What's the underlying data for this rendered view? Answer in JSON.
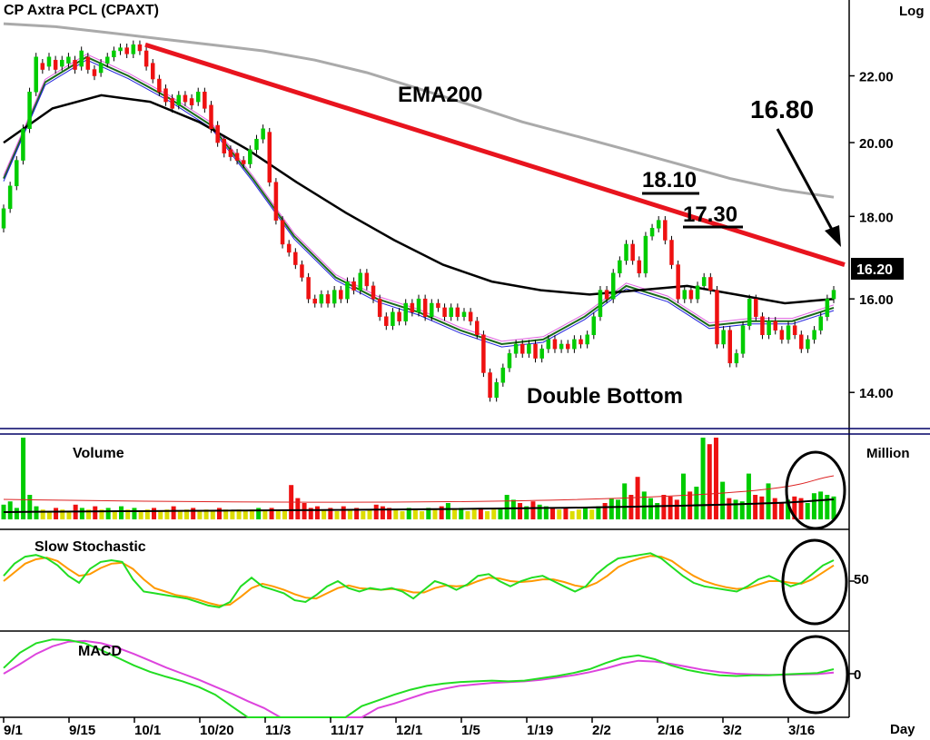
{
  "chart_data": {
    "type": "candlestick",
    "title": "CP  Axtra  PCL  (CPAXT)",
    "price_scale_label": "Log",
    "x_unit_label": "Day",
    "x_ticks": [
      "9/1",
      "9/15",
      "10/1",
      "10/20",
      "11/3",
      "11/17",
      "12/1",
      "1/5",
      "1/19",
      "2/2",
      "2/16",
      "3/2",
      "3/16"
    ],
    "price_ticks": [
      "22.00",
      "20.00",
      "18.00",
      "16.00",
      "14.00"
    ],
    "price_tick_values": [
      22,
      20,
      18,
      16,
      14
    ],
    "price_range": [
      13.4,
      24.2
    ],
    "last_price": "16.20",
    "price_bars": [
      {
        "o": 17.7,
        "c": 18.2
      },
      {
        "o": 18.2,
        "c": 18.8
      },
      {
        "o": 18.8,
        "c": 19.5
      },
      {
        "o": 19.5,
        "c": 20.4
      },
      {
        "o": 20.4,
        "c": 21.5
      },
      {
        "o": 21.5,
        "c": 22.6
      },
      {
        "o": 22.4,
        "c": 22.2
      },
      {
        "o": 22.3,
        "c": 22.6
      },
      {
        "o": 22.5,
        "c": 22.2
      },
      {
        "o": 22.3,
        "c": 22.5
      },
      {
        "o": 22.4,
        "c": 22.6
      },
      {
        "o": 22.5,
        "c": 22.2
      },
      {
        "o": 22.3,
        "c": 22.8
      },
      {
        "o": 22.6,
        "c": 22.2
      },
      {
        "o": 22.2,
        "c": 22.0
      },
      {
        "o": 22.1,
        "c": 22.4
      },
      {
        "o": 22.4,
        "c": 22.6
      },
      {
        "o": 22.6,
        "c": 22.8
      },
      {
        "o": 22.8,
        "c": 22.9
      },
      {
        "o": 22.9,
        "c": 22.7
      },
      {
        "o": 22.7,
        "c": 23.0
      },
      {
        "o": 23.0,
        "c": 22.8
      },
      {
        "o": 22.8,
        "c": 22.3
      },
      {
        "o": 22.4,
        "c": 21.9
      },
      {
        "o": 21.9,
        "c": 21.5
      },
      {
        "o": 21.6,
        "c": 21.2
      },
      {
        "o": 21.3,
        "c": 21.0
      },
      {
        "o": 21.1,
        "c": 21.4
      },
      {
        "o": 21.4,
        "c": 21.2
      },
      {
        "o": 21.3,
        "c": 21.1
      },
      {
        "o": 21.2,
        "c": 21.5
      },
      {
        "o": 21.5,
        "c": 21.0
      },
      {
        "o": 21.1,
        "c": 20.4
      },
      {
        "o": 20.5,
        "c": 20.0
      },
      {
        "o": 20.1,
        "c": 19.7
      },
      {
        "o": 19.8,
        "c": 19.6
      },
      {
        "o": 19.7,
        "c": 19.5
      },
      {
        "o": 19.5,
        "c": 19.4
      },
      {
        "o": 19.4,
        "c": 19.8
      },
      {
        "o": 19.8,
        "c": 20.1
      },
      {
        "o": 20.1,
        "c": 20.4
      },
      {
        "o": 20.3,
        "c": 18.9
      },
      {
        "o": 18.9,
        "c": 17.9
      },
      {
        "o": 17.9,
        "c": 17.3
      },
      {
        "o": 17.3,
        "c": 17.1
      },
      {
        "o": 17.1,
        "c": 16.8
      },
      {
        "o": 16.8,
        "c": 16.5
      },
      {
        "o": 16.5,
        "c": 16.0
      },
      {
        "o": 16.0,
        "c": 15.9
      },
      {
        "o": 15.9,
        "c": 16.1
      },
      {
        "o": 16.1,
        "c": 15.9
      },
      {
        "o": 15.9,
        "c": 16.2
      },
      {
        "o": 16.2,
        "c": 16.0
      },
      {
        "o": 16.0,
        "c": 16.4
      },
      {
        "o": 16.4,
        "c": 16.2
      },
      {
        "o": 16.2,
        "c": 16.6
      },
      {
        "o": 16.6,
        "c": 16.3
      },
      {
        "o": 16.3,
        "c": 16.0
      },
      {
        "o": 16.0,
        "c": 15.6
      },
      {
        "o": 15.6,
        "c": 15.4
      },
      {
        "o": 15.4,
        "c": 15.7
      },
      {
        "o": 15.7,
        "c": 15.5
      },
      {
        "o": 15.5,
        "c": 15.9
      },
      {
        "o": 15.9,
        "c": 15.7
      },
      {
        "o": 15.7,
        "c": 16.0
      },
      {
        "o": 16.0,
        "c": 15.6
      },
      {
        "o": 15.6,
        "c": 15.9
      },
      {
        "o": 15.9,
        "c": 15.8
      },
      {
        "o": 15.8,
        "c": 15.6
      },
      {
        "o": 15.6,
        "c": 15.8
      },
      {
        "o": 15.8,
        "c": 15.6
      },
      {
        "o": 15.6,
        "c": 15.7
      },
      {
        "o": 15.7,
        "c": 15.5
      },
      {
        "o": 15.5,
        "c": 15.2
      },
      {
        "o": 15.2,
        "c": 14.4
      },
      {
        "o": 14.4,
        "c": 13.9
      },
      {
        "o": 13.9,
        "c": 14.2
      },
      {
        "o": 14.2,
        "c": 14.5
      },
      {
        "o": 14.5,
        "c": 14.8
      },
      {
        "o": 14.8,
        "c": 15.0
      },
      {
        "o": 15.0,
        "c": 14.8
      },
      {
        "o": 14.8,
        "c": 15.0
      },
      {
        "o": 15.0,
        "c": 14.7
      },
      {
        "o": 14.7,
        "c": 14.9
      },
      {
        "o": 14.9,
        "c": 15.1
      },
      {
        "o": 15.1,
        "c": 14.9
      },
      {
        "o": 14.9,
        "c": 15.0
      },
      {
        "o": 15.0,
        "c": 14.9
      },
      {
        "o": 14.9,
        "c": 15.1
      },
      {
        "o": 15.1,
        "c": 15.0
      },
      {
        "o": 15.0,
        "c": 15.2
      },
      {
        "o": 15.2,
        "c": 15.6
      },
      {
        "o": 15.6,
        "c": 16.2
      },
      {
        "o": 16.2,
        "c": 16.0
      },
      {
        "o": 16.0,
        "c": 16.6
      },
      {
        "o": 16.6,
        "c": 16.9
      },
      {
        "o": 16.9,
        "c": 17.3
      },
      {
        "o": 17.3,
        "c": 16.9
      },
      {
        "o": 16.9,
        "c": 16.6
      },
      {
        "o": 16.6,
        "c": 17.5
      },
      {
        "o": 17.5,
        "c": 17.7
      },
      {
        "o": 17.7,
        "c": 17.9
      },
      {
        "o": 17.9,
        "c": 17.4
      },
      {
        "o": 17.4,
        "c": 16.8
      },
      {
        "o": 16.8,
        "c": 16.0
      },
      {
        "o": 16.0,
        "c": 16.2
      },
      {
        "o": 16.2,
        "c": 16.0
      },
      {
        "o": 16.0,
        "c": 16.3
      },
      {
        "o": 16.3,
        "c": 16.5
      },
      {
        "o": 16.5,
        "c": 16.2
      },
      {
        "o": 16.2,
        "c": 15.0
      },
      {
        "o": 15.0,
        "c": 15.3
      },
      {
        "o": 15.3,
        "c": 14.6
      },
      {
        "o": 14.6,
        "c": 14.8
      },
      {
        "o": 14.8,
        "c": 15.4
      },
      {
        "o": 15.4,
        "c": 16.0
      },
      {
        "o": 16.0,
        "c": 15.6
      },
      {
        "o": 15.6,
        "c": 15.2
      },
      {
        "o": 15.2,
        "c": 15.5
      },
      {
        "o": 15.5,
        "c": 15.3
      },
      {
        "o": 15.3,
        "c": 15.1
      },
      {
        "o": 15.1,
        "c": 15.4
      },
      {
        "o": 15.4,
        "c": 15.2
      },
      {
        "o": 15.2,
        "c": 14.9
      },
      {
        "o": 14.9,
        "c": 15.1
      },
      {
        "o": 15.1,
        "c": 15.3
      },
      {
        "o": 15.3,
        "c": 15.6
      },
      {
        "o": 15.6,
        "c": 16.0
      },
      {
        "o": 16.0,
        "c": 16.2
      }
    ],
    "ema200": [
      23.7,
      23.6,
      23.4,
      23.2,
      23.0,
      22.8,
      22.5,
      22.1,
      21.6,
      21.1,
      20.6,
      20.2,
      19.8,
      19.4,
      19.0,
      18.7,
      18.5
    ],
    "ma_long": [
      20.0,
      21.0,
      21.4,
      21.2,
      20.6,
      19.8,
      18.9,
      18.1,
      17.4,
      16.8,
      16.4,
      16.2,
      16.1,
      16.2,
      16.3,
      16.1,
      15.9,
      16.0
    ],
    "ma_mid": [
      19.0,
      21.8,
      22.6,
      22.0,
      21.3,
      20.5,
      19.0,
      17.5,
      16.5,
      16.0,
      15.7,
      15.3,
      15.0,
      15.1,
      15.6,
      16.3,
      16.0,
      15.4,
      15.5,
      15.5,
      15.8
    ],
    "trendline": {
      "from": 23.0,
      "to": 16.8
    },
    "trendline_label": "EMA200",
    "annotations": {
      "left_peak": "18.10",
      "right_peak": "17.30",
      "target": "16.80",
      "pattern": "Double Bottom"
    },
    "volume_panel": {
      "title": "Volume",
      "unit": "Million"
    },
    "stochastic_panel": {
      "title": "Slow  Stochastic",
      "tick": "50",
      "tick_value": 50
    },
    "macd_panel": {
      "title": "MACD",
      "tick": "0",
      "tick_value": 0
    },
    "volume": [
      0.18,
      0.22,
      0.14,
      1.0,
      0.3,
      0.16,
      0.12,
      0.1,
      0.14,
      0.12,
      0.1,
      0.18,
      0.14,
      0.12,
      0.16,
      0.12,
      0.14,
      0.1,
      0.16,
      0.12,
      0.14,
      0.1,
      0.12,
      0.14,
      0.1,
      0.12,
      0.16,
      0.1,
      0.12,
      0.14,
      0.1,
      0.12,
      0.1,
      0.14,
      0.12,
      0.1,
      0.12,
      0.1,
      0.12,
      0.14,
      0.1,
      0.14,
      0.12,
      0.1,
      0.42,
      0.26,
      0.2,
      0.14,
      0.16,
      0.12,
      0.14,
      0.1,
      0.16,
      0.12,
      0.14,
      0.1,
      0.12,
      0.18,
      0.16,
      0.14,
      0.12,
      0.1,
      0.14,
      0.12,
      0.1,
      0.14,
      0.12,
      0.16,
      0.2,
      0.12,
      0.14,
      0.1,
      0.12,
      0.14,
      0.1,
      0.12,
      0.14,
      0.3,
      0.24,
      0.2,
      0.16,
      0.22,
      0.18,
      0.16,
      0.14,
      0.12,
      0.14,
      0.1,
      0.12,
      0.14,
      0.12,
      0.16,
      0.2,
      0.26,
      0.24,
      0.44,
      0.3,
      0.52,
      0.34,
      0.26,
      0.2,
      0.3,
      0.28,
      0.24,
      0.56,
      0.34,
      0.4,
      1.0,
      0.92,
      1.0,
      0.46,
      0.26,
      0.24,
      0.22,
      0.56,
      0.3,
      0.28,
      0.44,
      0.26,
      0.2,
      0.24,
      0.28,
      0.26,
      0.2,
      0.32,
      0.34,
      0.3,
      0.28
    ],
    "stoch_k": [
      56,
      70,
      78,
      80,
      76,
      68,
      56,
      48,
      64,
      72,
      74,
      72,
      52,
      38,
      36,
      34,
      32,
      30,
      26,
      22,
      20,
      26,
      44,
      54,
      44,
      40,
      36,
      28,
      26,
      34,
      44,
      50,
      42,
      38,
      42,
      40,
      42,
      38,
      30,
      40,
      50,
      46,
      40,
      46,
      56,
      58,
      50,
      44,
      50,
      54,
      56,
      50,
      44,
      38,
      44,
      58,
      68,
      76,
      78,
      80,
      82,
      76,
      66,
      56,
      48,
      44,
      42,
      40,
      38,
      44,
      52,
      56,
      50,
      44,
      48,
      58,
      68,
      74
    ],
    "stoch_d": [
      50,
      60,
      70,
      75,
      77,
      73,
      64,
      56,
      58,
      65,
      70,
      71,
      64,
      52,
      42,
      38,
      34,
      32,
      29,
      25,
      22,
      23,
      32,
      42,
      47,
      44,
      40,
      35,
      31,
      30,
      36,
      42,
      45,
      42,
      41,
      40,
      41,
      40,
      37,
      37,
      42,
      45,
      44,
      45,
      50,
      54,
      53,
      50,
      49,
      50,
      52,
      52,
      49,
      45,
      43,
      48,
      56,
      66,
      72,
      76,
      79,
      78,
      73,
      64,
      56,
      50,
      46,
      43,
      41,
      42,
      46,
      50,
      50,
      48,
      47,
      52,
      60,
      68
    ],
    "macd": [
      0.15,
      0.55,
      0.8,
      0.9,
      0.88,
      0.8,
      0.62,
      0.42,
      0.22,
      0.05,
      -0.08,
      -0.2,
      -0.35,
      -0.55,
      -0.85,
      -1.0,
      -1.0,
      -1.0,
      -1.0,
      -1.0,
      -1.0,
      -1.0,
      -0.85,
      -0.7,
      -0.55,
      -0.42,
      -0.32,
      -0.26,
      -0.22,
      -0.2,
      -0.18,
      -0.2,
      -0.18,
      -0.12,
      -0.06,
      0.02,
      0.12,
      0.28,
      0.42,
      0.48,
      0.38,
      0.22,
      0.1,
      0.02,
      -0.04,
      -0.06,
      -0.04,
      -0.04,
      -0.02,
      0.0,
      0.02,
      0.12
    ],
    "macd_signal": [
      0.0,
      0.25,
      0.52,
      0.72,
      0.84,
      0.86,
      0.8,
      0.68,
      0.52,
      0.34,
      0.16,
      0.0,
      -0.16,
      -0.34,
      -0.52,
      -0.72,
      -0.9,
      -1.0,
      -1.0,
      -1.0,
      -1.0,
      -1.0,
      -1.0,
      -0.9,
      -0.78,
      -0.64,
      -0.5,
      -0.4,
      -0.32,
      -0.28,
      -0.24,
      -0.22,
      -0.2,
      -0.16,
      -0.1,
      -0.04,
      0.04,
      0.14,
      0.26,
      0.34,
      0.32,
      0.26,
      0.18,
      0.1,
      0.04,
      0.0,
      -0.02,
      -0.03,
      -0.03,
      -0.02,
      -0.01,
      0.03
    ],
    "colors": {
      "up": "#00cc00",
      "down": "#ee1111",
      "ema200": "#aaaaaa",
      "trendline": "#e8141e",
      "ma_long": "#000000",
      "ma_mid": "#1a6a1a",
      "ma_fast": "#2222dd",
      "ma_pink": "#e060e0",
      "stoch_k": "#22dd22",
      "stoch_d": "#ff9900",
      "macd": "#22dd22",
      "macd_signal": "#dd44dd",
      "volume_avg": "#000000",
      "volume_avg2": "#dd2222",
      "separator": "#000066"
    }
  }
}
